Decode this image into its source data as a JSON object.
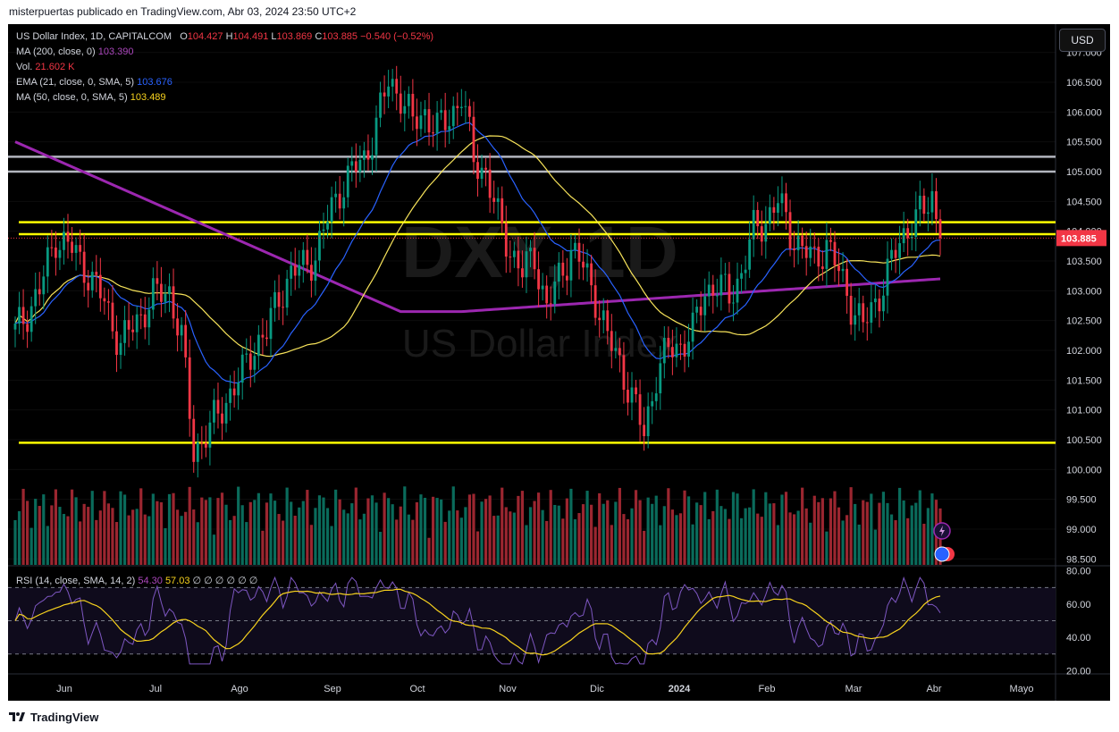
{
  "header": {
    "text": "misterpuertas publicado en TradingView.com, Abr 03, 2024 23:50 UTC+2"
  },
  "footer": {
    "brand": "TradingView"
  },
  "currency_button": "USD",
  "watermark": {
    "symbol": "DXY, 1D",
    "name": "US Dollar Index"
  },
  "legend": {
    "symbol": "US Dollar Index, 1D, CAPITALCOM",
    "o_label": "O",
    "o": "104.427",
    "h_label": "H",
    "h": "104.491",
    "l_label": "L",
    "l": "103.869",
    "c_label": "C",
    "c": "103.885",
    "chg": "−0.540 (−0.52%)",
    "ma200_label": "MA (200, close, 0)",
    "ma200": "103.390",
    "vol_label": "Vol.",
    "vol": "21.602 K",
    "ema21_label": "EMA (21, close, 0, SMA, 5)",
    "ema21": "103.676",
    "ma50_label": "MA (50, close, 0, SMA, 5)",
    "ma50": "103.489",
    "rsi_label": "RSI (14, close, SMA, 14, 2)",
    "rsi": "54.30",
    "rsi_ma": "57.03",
    "rsi_extra": "∅ ∅ ∅ ∅ ∅ ∅"
  },
  "colors": {
    "up": "#089981",
    "down": "#f23645",
    "ma200": "#9c27b0",
    "ema21": "#2962ff",
    "ma50": "#f7e35a",
    "hline_yellow": "#ffff00",
    "hline_gray": "#b2b5be",
    "rsi": "#7e57c2",
    "rsi_ma": "#f7d21e"
  },
  "chart_data": {
    "type": "candlestick",
    "title": "US Dollar Index, 1D, CAPITALCOM",
    "price_axis": {
      "ticks": [
        "107.000",
        "106.500",
        "106.000",
        "105.500",
        "105.000",
        "104.500",
        "104.000",
        "103.500",
        "103.000",
        "102.500",
        "102.000",
        "101.500",
        "101.000",
        "100.500",
        "100.000",
        "99.500",
        "99.000",
        "98.500"
      ],
      "range": [
        98.4,
        107.4
      ]
    },
    "last_price": "103.885",
    "x_labels": [
      "Jun",
      "Jul",
      "Ago",
      "Sep",
      "Oct",
      "Nov",
      "Dic",
      "2024",
      "Feb",
      "Mar",
      "Abr",
      "Mayo"
    ],
    "horizontal_levels": [
      {
        "price": 105.25,
        "color": "gray"
      },
      {
        "price": 105.0,
        "color": "gray"
      },
      {
        "price": 104.15,
        "color": "yellow"
      },
      {
        "price": 103.95,
        "color": "yellow"
      },
      {
        "price": 100.45,
        "color": "yellow"
      }
    ],
    "close_path": [
      {
        "d": 0,
        "c": 102.3
      },
      {
        "d": 6,
        "c": 103.0
      },
      {
        "d": 10,
        "c": 103.9
      },
      {
        "d": 14,
        "c": 103.7
      },
      {
        "d": 18,
        "c": 103.3
      },
      {
        "d": 22,
        "c": 102.8
      },
      {
        "d": 26,
        "c": 102.1
      },
      {
        "d": 30,
        "c": 102.5
      },
      {
        "d": 34,
        "c": 102.9
      },
      {
        "d": 38,
        "c": 103.0
      },
      {
        "d": 41,
        "c": 102.2
      },
      {
        "d": 44,
        "c": 100.3
      },
      {
        "d": 47,
        "c": 100.6
      },
      {
        "d": 50,
        "c": 100.9
      },
      {
        "d": 53,
        "c": 101.3
      },
      {
        "d": 56,
        "c": 101.6
      },
      {
        "d": 59,
        "c": 102.1
      },
      {
        "d": 62,
        "c": 102.3
      },
      {
        "d": 65,
        "c": 102.9
      },
      {
        "d": 68,
        "c": 103.3
      },
      {
        "d": 71,
        "c": 103.4
      },
      {
        "d": 74,
        "c": 103.6
      },
      {
        "d": 77,
        "c": 104.2
      },
      {
        "d": 80,
        "c": 104.7
      },
      {
        "d": 83,
        "c": 105.0
      },
      {
        "d": 86,
        "c": 105.2
      },
      {
        "d": 89,
        "c": 105.8
      },
      {
        "d": 92,
        "c": 106.5
      },
      {
        "d": 95,
        "c": 106.3
      },
      {
        "d": 98,
        "c": 105.8
      },
      {
        "d": 101,
        "c": 106.0
      },
      {
        "d": 104,
        "c": 105.7
      },
      {
        "d": 107,
        "c": 105.9
      },
      {
        "d": 110,
        "c": 106.3
      },
      {
        "d": 113,
        "c": 105.2
      },
      {
        "d": 116,
        "c": 105.0
      },
      {
        "d": 119,
        "c": 104.2
      },
      {
        "d": 122,
        "c": 103.7
      },
      {
        "d": 125,
        "c": 103.3
      },
      {
        "d": 128,
        "c": 103.6
      },
      {
        "d": 131,
        "c": 102.7
      },
      {
        "d": 134,
        "c": 103.2
      },
      {
        "d": 137,
        "c": 103.7
      },
      {
        "d": 140,
        "c": 103.4
      },
      {
        "d": 143,
        "c": 102.9
      },
      {
        "d": 146,
        "c": 102.2
      },
      {
        "d": 149,
        "c": 101.8
      },
      {
        "d": 152,
        "c": 101.2
      },
      {
        "d": 155,
        "c": 100.6
      },
      {
        "d": 158,
        "c": 101.6
      },
      {
        "d": 161,
        "c": 102.0
      },
      {
        "d": 164,
        "c": 102.1
      },
      {
        "d": 167,
        "c": 102.3
      },
      {
        "d": 170,
        "c": 103.0
      },
      {
        "d": 173,
        "c": 103.1
      },
      {
        "d": 176,
        "c": 102.9
      },
      {
        "d": 179,
        "c": 103.3
      },
      {
        "d": 182,
        "c": 104.0
      },
      {
        "d": 185,
        "c": 104.2
      },
      {
        "d": 188,
        "c": 104.5
      },
      {
        "d": 191,
        "c": 104.0
      },
      {
        "d": 194,
        "c": 103.7
      },
      {
        "d": 197,
        "c": 103.5
      },
      {
        "d": 200,
        "c": 103.8
      },
      {
        "d": 203,
        "c": 103.3
      },
      {
        "d": 206,
        "c": 102.8
      },
      {
        "d": 209,
        "c": 102.4
      },
      {
        "d": 212,
        "c": 102.8
      },
      {
        "d": 215,
        "c": 103.3
      },
      {
        "d": 218,
        "c": 103.8
      },
      {
        "d": 221,
        "c": 104.2
      },
      {
        "d": 224,
        "c": 104.3
      },
      {
        "d": 226,
        "c": 104.6
      },
      {
        "d": 228,
        "c": 103.885
      }
    ],
    "rsi_axis": {
      "ticks": [
        "80.00",
        "60.00",
        "40.00",
        "20.00"
      ],
      "range": [
        18,
        82
      ],
      "bands": [
        70,
        50,
        30
      ]
    },
    "series": [
      {
        "name": "MA (200, close, 0)",
        "last": 103.39
      },
      {
        "name": "EMA (21, close, 0, SMA, 5)",
        "last": 103.676
      },
      {
        "name": "MA (50, close, 0, SMA, 5)",
        "last": 103.489
      },
      {
        "name": "Vol.",
        "last": "21.602 K"
      },
      {
        "name": "RSI (14, close, SMA, 14, 2)",
        "last": 54.3,
        "ma_last": 57.03
      }
    ]
  }
}
